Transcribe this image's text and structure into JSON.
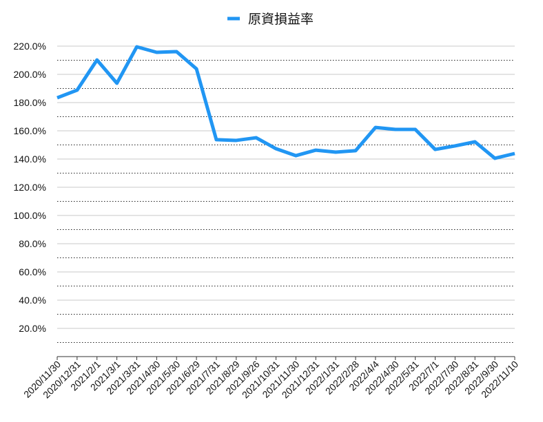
{
  "chart_data": {
    "type": "line",
    "categories": [
      "2020/11/30",
      "2020/12/31",
      "2021/2/1",
      "2021/3/1",
      "2021/3/31",
      "2021/4/30",
      "2021/5/30",
      "2021/6/29",
      "2021/7/31",
      "2021/8/29",
      "2021/9/26",
      "2021/10/31",
      "2021/11/30",
      "2021/12/31",
      "2022/1/31",
      "2022/2/28",
      "2022/4/4",
      "2022/4/30",
      "2022/5/31",
      "2022/7/1",
      "2022/7/30",
      "2022/8/31",
      "2022/9/30",
      "2022/11/10"
    ],
    "series": [
      {
        "name": "原資損益率",
        "color": "#2196f3",
        "values": [
          183.4,
          188.8,
          210.2,
          193.7,
          219.5,
          215.6,
          216.1,
          203.9,
          153.7,
          153.2,
          155.1,
          147.3,
          142.4,
          146.3,
          144.9,
          145.9,
          162.4,
          161.0,
          161.0,
          146.8,
          149.3,
          152.2,
          140.5,
          143.9
        ]
      }
    ],
    "ylim": [
      0,
      220
    ],
    "yticks": [
      {
        "value": 20,
        "label": "20.0%"
      },
      {
        "value": 40,
        "label": "40.0%"
      },
      {
        "value": 60,
        "label": "60.0%"
      },
      {
        "value": 80,
        "label": "80.0%"
      },
      {
        "value": 100,
        "label": "100.0%"
      },
      {
        "value": 120,
        "label": "120.0%"
      },
      {
        "value": 140,
        "label": "140.0%"
      },
      {
        "value": 160,
        "label": "160.0%"
      },
      {
        "value": 180,
        "label": "180.0%"
      },
      {
        "value": 200,
        "label": "200.0%"
      },
      {
        "value": 220,
        "label": "220.0%"
      }
    ],
    "minor_yticks": [
      10,
      30,
      50,
      70,
      90,
      110,
      130,
      150,
      170,
      190,
      210
    ],
    "grid": true,
    "legend": "top"
  }
}
